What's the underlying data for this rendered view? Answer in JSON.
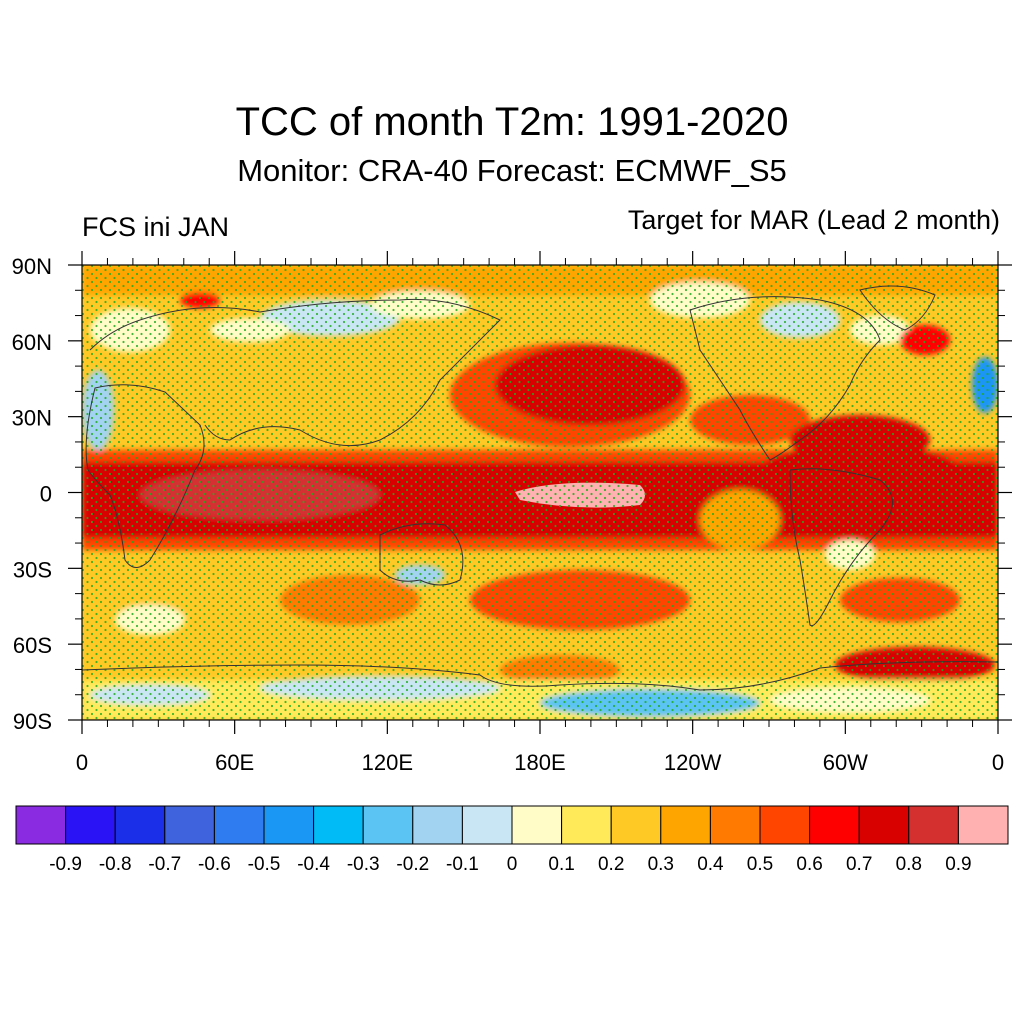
{
  "title": "TCC of month T2m: 1991-2020",
  "subtitle": "Monitor: CRA-40   Forecast: ECMWF_S5",
  "left_label": "FCS ini JAN",
  "right_label": "Target for MAR (Lead 2 month)",
  "lat_labels": [
    "90N",
    "60N",
    "30N",
    "0",
    "30S",
    "60S",
    "90S"
  ],
  "lon_labels": [
    "0",
    "60E",
    "120E",
    "180E",
    "120W",
    "60W",
    "0"
  ],
  "colorbar": {
    "colors": [
      "#8a2be2",
      "#2a14f5",
      "#1c2fe8",
      "#3f62dd",
      "#2f7bf0",
      "#1a96f5",
      "#00bbf5",
      "#5bc4f2",
      "#a2d3f0",
      "#c9e6f5",
      "#fffcc8",
      "#ffea5a",
      "#ffc925",
      "#ffa500",
      "#ff7a00",
      "#ff4500",
      "#ff0000",
      "#d90000",
      "#d43030",
      "#ffb0b0"
    ],
    "labels": [
      "-0.9",
      "-0.8",
      "-0.7",
      "-0.6",
      "-0.5",
      "-0.4",
      "-0.3",
      "-0.2",
      "-0.1",
      "0",
      "0.1",
      "0.2",
      "0.3",
      "0.4",
      "0.5",
      "0.6",
      "0.7",
      "0.8",
      "0.9"
    ]
  },
  "stipple_color": "#22aa22",
  "coast_color": "#333333"
}
